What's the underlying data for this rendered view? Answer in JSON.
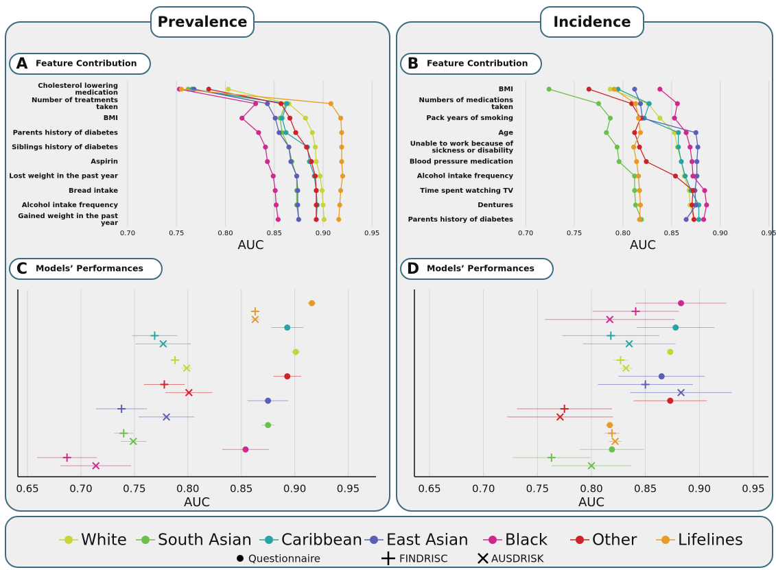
{
  "headings": [
    "Prevalence",
    "Incidence"
  ],
  "legend": {
    "position": "bottom",
    "models": [
      "Questionnaire",
      "FINDRISC",
      "AUSDRISK"
    ]
  },
  "chart_data": [
    {
      "type": "dot-line",
      "label": "A",
      "title": "Feature Contribution",
      "xlabel": "AUC",
      "categories": [
        "Cholesterol lowering medication",
        "Number of treatments taken",
        "BMI",
        "Parents history of diabetes",
        "Siblings history of diabetes",
        "Aspirin",
        "Lost weight in the past year",
        "Bread intake",
        "Alcohol intake frequency",
        "Gained weight in the past year"
      ],
      "series": [
        {
          "name": "White",
          "color": "#c8d43a",
          "values": [
            0.803,
            0.865,
            0.882,
            0.889,
            0.892,
            0.893,
            0.897,
            0.899,
            0.9,
            0.901
          ]
        },
        {
          "name": "South Asian",
          "color": "#6bbf4a",
          "values": [
            0.762,
            0.862,
            0.856,
            0.858,
            0.865,
            0.868,
            0.873,
            0.873,
            0.873,
            0.875
          ]
        },
        {
          "name": "Caribbean",
          "color": "#27a3a6",
          "values": [
            0.766,
            0.863,
            0.858,
            0.862,
            0.884,
            0.886,
            0.891,
            0.893,
            0.894,
            0.893
          ]
        },
        {
          "name": "East Asian",
          "color": "#5a5fb5",
          "values": [
            0.768,
            0.843,
            0.851,
            0.855,
            0.865,
            0.867,
            0.873,
            0.874,
            0.874,
            0.875
          ]
        },
        {
          "name": "Black",
          "color": "#cc2a8c",
          "values": [
            0.753,
            0.831,
            0.817,
            0.834,
            0.841,
            0.843,
            0.849,
            0.851,
            0.852,
            0.854
          ]
        },
        {
          "name": "Other",
          "color": "#cc2229",
          "values": [
            0.783,
            0.857,
            0.866,
            0.872,
            0.883,
            0.888,
            0.892,
            0.893,
            0.893,
            0.893
          ]
        },
        {
          "name": "Lifelines",
          "color": "#e69b28",
          "values": [
            0.755,
            0.908,
            0.918,
            0.919,
            0.919,
            0.919,
            0.92,
            0.918,
            0.917,
            0.916
          ]
        }
      ],
      "xlim": [
        0.693,
        0.959
      ],
      "xticks": [
        {
          "value": 0.7,
          "label": "0.70"
        },
        0.75,
        {
          "value": 0.8,
          "label": "0.80"
        },
        0.85,
        {
          "value": 0.9,
          "label": "0.90"
        },
        0.95
      ],
      "grid": true
    },
    {
      "type": "dot-line",
      "label": "B",
      "title": "Feature Contribution",
      "xlabel": "AUC",
      "categories": [
        "BMI",
        "Numbers of medications taken",
        "Pack years of smoking",
        "Age",
        "Unable to work because of sickness or disability",
        "Blood pressure medication",
        "Alcohol intake frequency",
        "Time spent watching TV",
        "Dentures",
        "Parents history of diabetes"
      ],
      "series": [
        {
          "name": "White",
          "color": "#c8d43a",
          "values": [
            0.787,
            0.826,
            0.838,
            0.853,
            0.856,
            0.86,
            0.863,
            0.868,
            0.869,
            0.873
          ]
        },
        {
          "name": "South Asian",
          "color": "#6bbf4a",
          "values": [
            0.724,
            0.775,
            0.787,
            0.783,
            0.794,
            0.796,
            0.812,
            0.812,
            0.813,
            0.819
          ]
        },
        {
          "name": "Caribbean",
          "color": "#27a3a6",
          "values": [
            0.795,
            0.827,
            0.822,
            0.857,
            0.857,
            0.86,
            0.864,
            0.87,
            0.878,
            0.878
          ]
        },
        {
          "name": "East Asian",
          "color": "#5a5fb5",
          "values": [
            0.812,
            0.818,
            0.82,
            0.875,
            0.877,
            0.876,
            0.876,
            0.874,
            0.875,
            0.865
          ]
        },
        {
          "name": "Black",
          "color": "#cc2a8c",
          "values": [
            0.838,
            0.856,
            0.853,
            0.865,
            0.869,
            0.871,
            0.872,
            0.884,
            0.886,
            0.883
          ]
        },
        {
          "name": "Other",
          "color": "#cc2229",
          "values": [
            0.765,
            0.809,
            0.818,
            0.812,
            0.817,
            0.824,
            0.854,
            0.872,
            0.871,
            0.873
          ]
        },
        {
          "name": "Lifelines",
          "color": "#e69b28",
          "values": [
            0.791,
            0.813,
            0.816,
            0.818,
            0.811,
            0.814,
            0.816,
            0.817,
            0.818,
            0.817
          ]
        }
      ],
      "xlim": [
        0.69,
        0.951
      ],
      "xticks": [
        {
          "value": 0.7,
          "label": "0.70"
        },
        0.75,
        {
          "value": 0.8,
          "label": "0.80"
        },
        0.85,
        {
          "value": 0.9,
          "label": "0.90"
        },
        0.95
      ],
      "grid": true
    },
    {
      "type": "errorbar",
      "label": "C",
      "title": "Models’ Performances",
      "xlabel": "AUC",
      "series": [
        {
          "name": "Lifelines",
          "color": "#e69b28",
          "values": [
            0.916,
            0.863,
            0.863
          ],
          "errors": [
            0.004,
            0.004,
            0.004
          ]
        },
        {
          "name": "Caribbean",
          "color": "#27a3a6",
          "values": [
            0.893,
            0.769,
            0.777
          ],
          "errors": [
            0.015,
            0.021,
            0.026
          ]
        },
        {
          "name": "White",
          "color": "#c8d43a",
          "values": [
            0.901,
            0.788,
            0.799
          ],
          "errors": [
            0.004,
            0.004,
            0.005
          ]
        },
        {
          "name": "Other",
          "color": "#cc2229",
          "values": [
            0.893,
            0.778,
            0.801
          ],
          "errors": [
            0.013,
            0.019,
            0.022
          ]
        },
        {
          "name": "East Asian",
          "color": "#5a5fb5",
          "values": [
            0.875,
            0.738,
            0.78
          ],
          "errors": [
            0.019,
            0.024,
            0.026
          ]
        },
        {
          "name": "South Asian",
          "color": "#6bbf4a",
          "values": [
            0.875,
            0.74,
            0.749
          ],
          "errors": [
            0.006,
            0.009,
            0.012
          ]
        },
        {
          "name": "Black",
          "color": "#cc2a8c",
          "values": [
            0.854,
            0.687,
            0.714
          ],
          "errors": [
            0.022,
            0.028,
            0.033
          ]
        }
      ],
      "xlim": [
        0.641,
        0.976
      ],
      "xticks": [
        0.65,
        {
          "value": 0.7,
          "label": "0.70"
        },
        0.75,
        {
          "value": 0.8,
          "label": "0.80"
        },
        0.85,
        {
          "value": 0.9,
          "label": "0.90"
        },
        0.95
      ],
      "grid": true
    },
    {
      "type": "errorbar",
      "label": "D",
      "title": "Models’ Performances",
      "xlabel": "AUC",
      "series": [
        {
          "name": "Black",
          "color": "#cc2a8c",
          "values": [
            0.883,
            0.841,
            0.817
          ],
          "errors": [
            0.042,
            0.04,
            0.06
          ]
        },
        {
          "name": "Caribbean",
          "color": "#27a3a6",
          "values": [
            0.878,
            0.818,
            0.835
          ],
          "errors": [
            0.036,
            0.045,
            0.043
          ]
        },
        {
          "name": "White",
          "color": "#c8d43a",
          "values": [
            0.873,
            0.827,
            0.832
          ],
          "errors": [
            0.003,
            0.007,
            0.006
          ]
        },
        {
          "name": "East Asian",
          "color": "#5a5fb5",
          "values": [
            0.865,
            0.85,
            0.883
          ],
          "errors": [
            0.04,
            0.044,
            0.047
          ]
        },
        {
          "name": "Other",
          "color": "#cc2229",
          "values": [
            0.873,
            0.775,
            0.771
          ],
          "errors": [
            0.034,
            0.044,
            0.049
          ]
        },
        {
          "name": "Lifelines",
          "color": "#e69b28",
          "values": [
            0.817,
            0.819,
            0.822
          ],
          "errors": [
            0.004,
            0.007,
            0.006
          ]
        },
        {
          "name": "South Asian",
          "color": "#6bbf4a",
          "values": [
            0.819,
            0.763,
            0.8
          ],
          "errors": [
            0.03,
            0.036,
            0.037
          ]
        }
      ],
      "xlim": [
        0.636,
        0.964
      ],
      "xticks": [
        0.65,
        {
          "value": 0.7,
          "label": "0.70"
        },
        0.75,
        {
          "value": 0.8,
          "label": "0.80"
        },
        0.85,
        {
          "value": 0.9,
          "label": "0.90"
        },
        0.95
      ],
      "grid": true
    }
  ]
}
